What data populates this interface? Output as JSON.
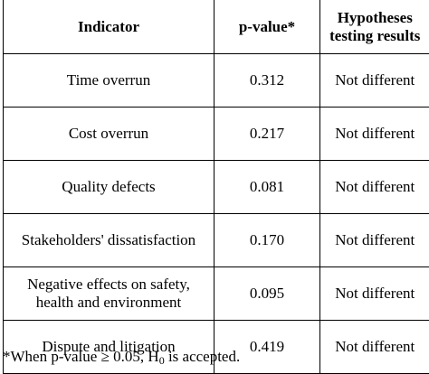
{
  "table": {
    "headers": {
      "indicator": "Indicator",
      "p_value": "p-value*",
      "hypotheses_line1": "Hypotheses",
      "hypotheses_line2": "testing results"
    },
    "rows": [
      {
        "indicator": "Time overrun",
        "p_value": "0.312",
        "result": "Not different"
      },
      {
        "indicator": "Cost overrun",
        "p_value": "0.217",
        "result": "Not different"
      },
      {
        "indicator": "Quality defects",
        "p_value": "0.081",
        "result": "Not different"
      },
      {
        "indicator": "Stakeholders' dissatisfaction",
        "p_value": "0.170",
        "result": "Not different"
      },
      {
        "indicator_line1": "Negative effects on safety,",
        "indicator_line2": "health and environment",
        "p_value": "0.095",
        "result": "Not different"
      },
      {
        "indicator": "Dispute and litigation",
        "p_value": "0.419",
        "result": "Not different"
      }
    ]
  },
  "footnote": {
    "prefix": "*When p-value ≥ 0.05, H",
    "subscript": "0",
    "suffix": " is accepted."
  }
}
